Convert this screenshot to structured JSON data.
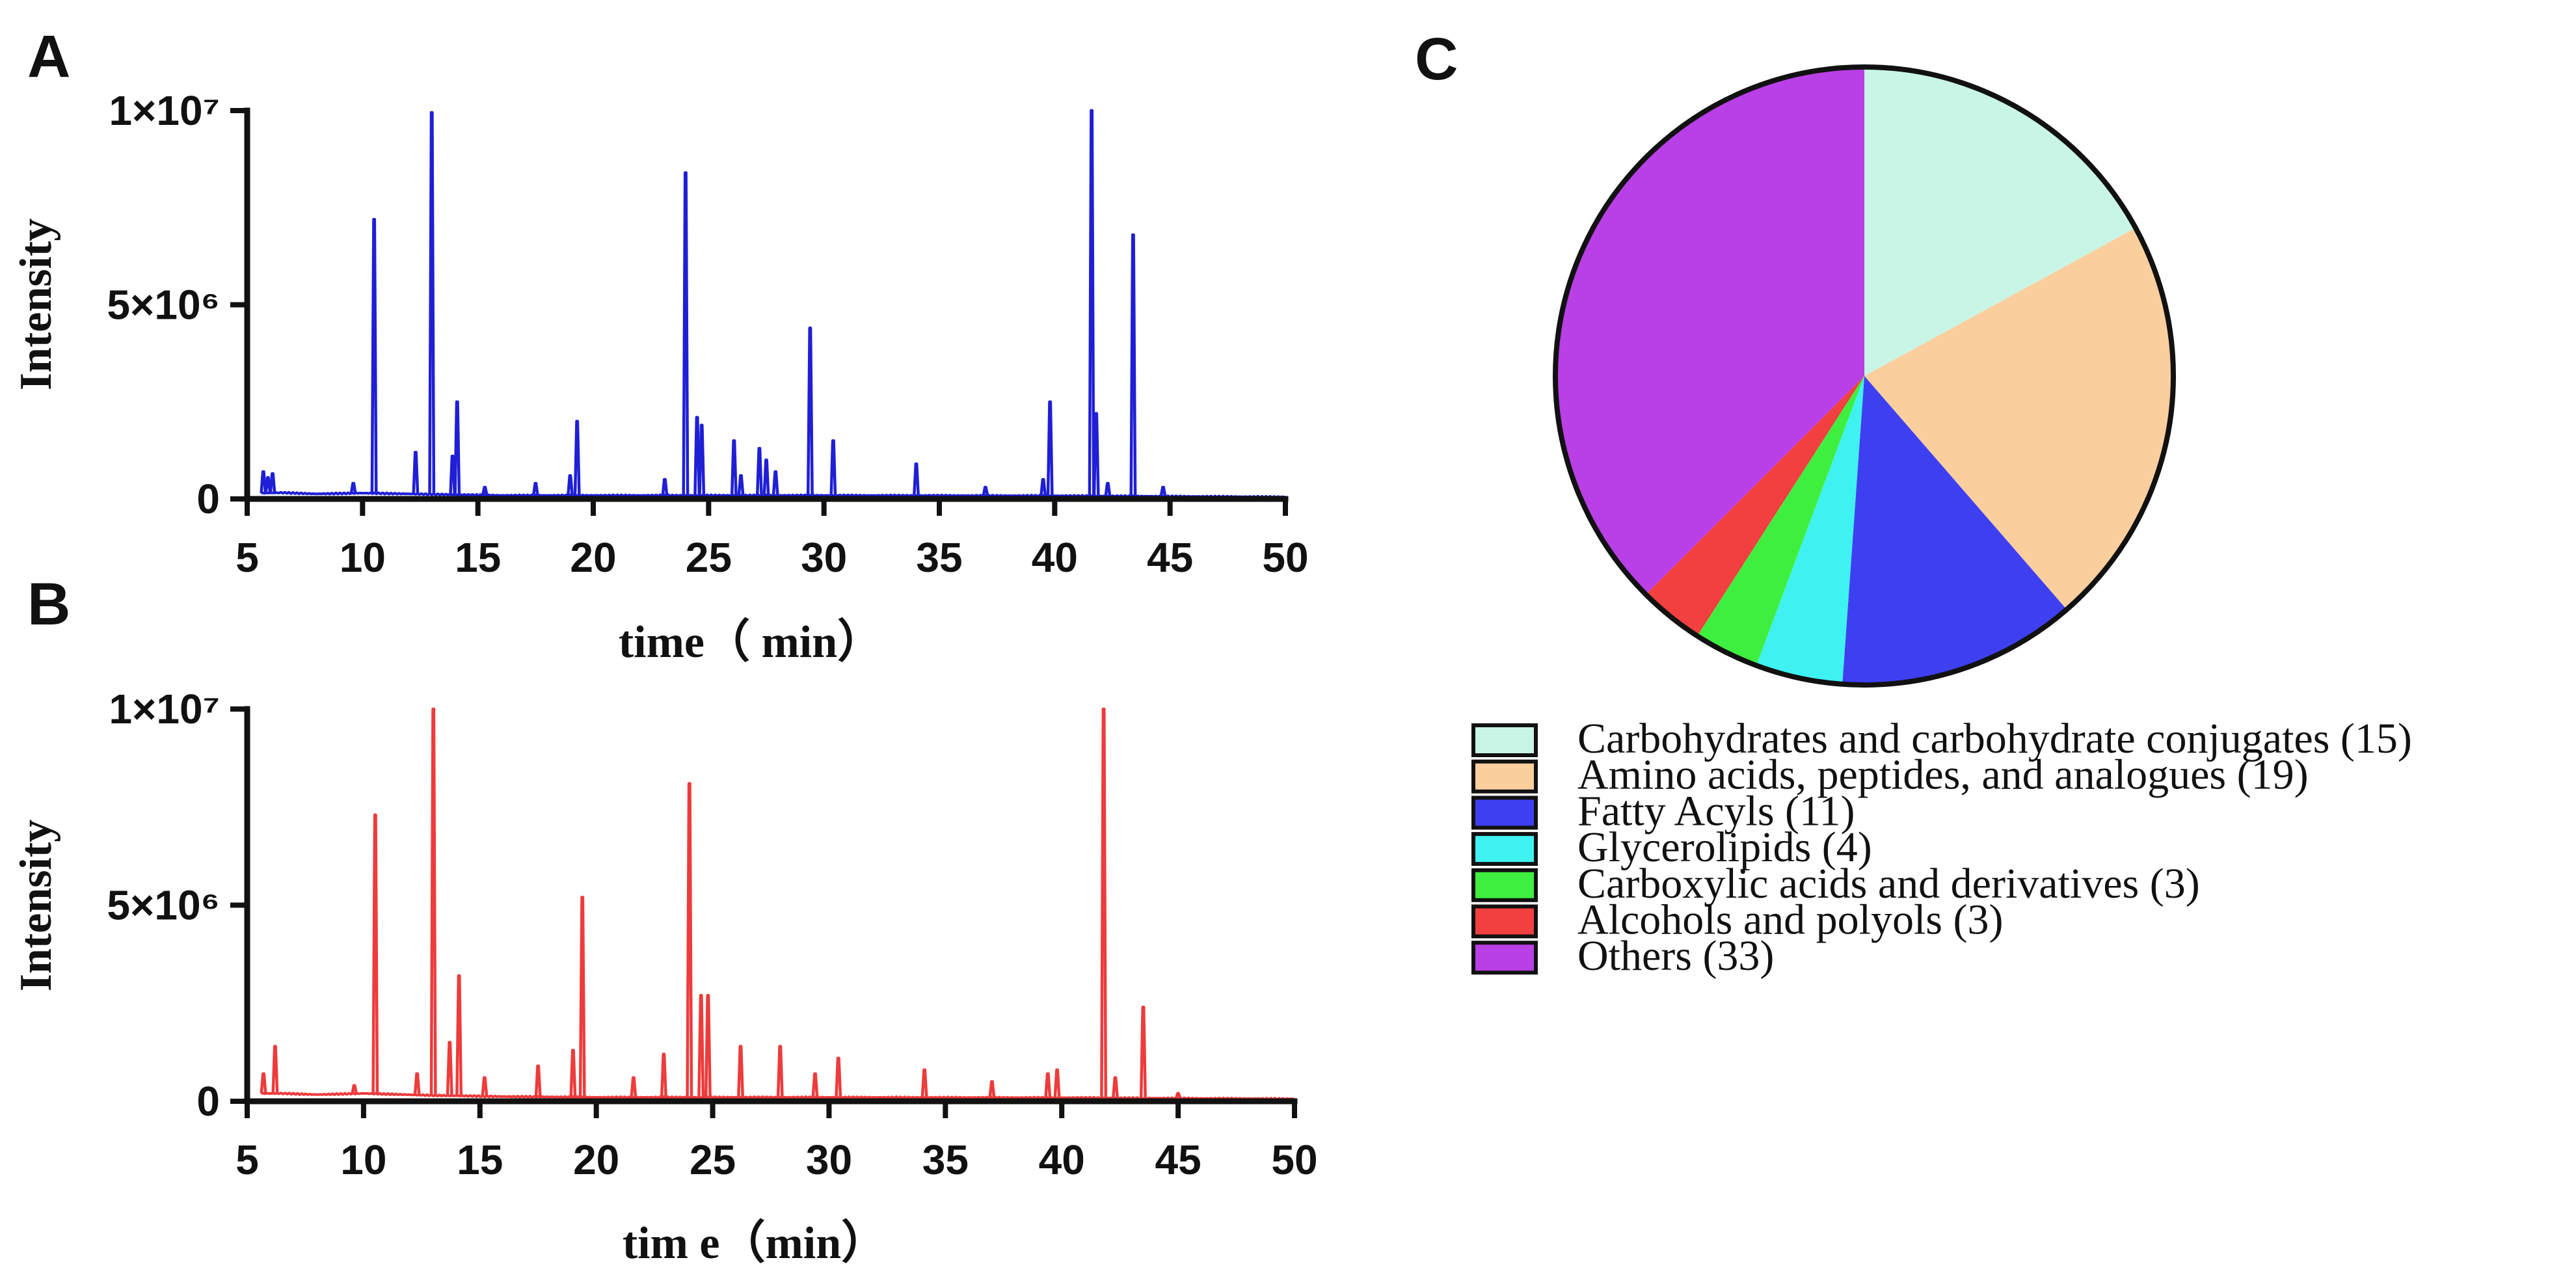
{
  "chart_data": [
    {
      "panel": "A",
      "type": "line",
      "title": "",
      "xlabel": "time（ min）",
      "ylabel": "Intensity",
      "xlim": [
        5,
        50
      ],
      "ylim": [
        0,
        10000000
      ],
      "xticks": [
        "5",
        "10",
        "15",
        "20",
        "25",
        "30",
        "35",
        "40",
        "45",
        "50"
      ],
      "xtick_values": [
        5,
        10,
        15,
        20,
        25,
        30,
        35,
        40,
        45,
        50
      ],
      "yticks": [
        "0",
        "5×10⁶",
        "1×10⁷"
      ],
      "ytick_values": [
        0,
        5000000,
        10000000
      ],
      "color": "#1f1fd6",
      "baseline": [
        [
          5.6,
          150000
        ],
        [
          6.5,
          160000
        ],
        [
          8.0,
          130000
        ],
        [
          10.0,
          150000
        ],
        [
          13.0,
          120000
        ],
        [
          16.0,
          90000
        ],
        [
          20.0,
          90000
        ],
        [
          30.0,
          90000
        ],
        [
          40.0,
          80000
        ],
        [
          50.0,
          50000
        ]
      ],
      "peaks": [
        [
          5.7,
          700000
        ],
        [
          5.9,
          550000
        ],
        [
          6.1,
          650000
        ],
        [
          9.6,
          400000
        ],
        [
          10.5,
          7200000
        ],
        [
          12.3,
          1200000
        ],
        [
          13.0,
          9950000
        ],
        [
          13.9,
          1100000
        ],
        [
          14.1,
          2500000
        ],
        [
          15.3,
          300000
        ],
        [
          17.5,
          400000
        ],
        [
          19.0,
          600000
        ],
        [
          19.3,
          2000000
        ],
        [
          23.1,
          500000
        ],
        [
          24.0,
          8400000
        ],
        [
          24.5,
          2100000
        ],
        [
          24.7,
          1900000
        ],
        [
          26.1,
          1500000
        ],
        [
          26.4,
          600000
        ],
        [
          27.2,
          1300000
        ],
        [
          27.5,
          1000000
        ],
        [
          27.9,
          700000
        ],
        [
          29.4,
          4400000
        ],
        [
          30.4,
          1500000
        ],
        [
          34.0,
          900000
        ],
        [
          37.0,
          300000
        ],
        [
          39.5,
          500000
        ],
        [
          39.8,
          2500000
        ],
        [
          41.6,
          10000000
        ],
        [
          41.8,
          2200000
        ],
        [
          42.3,
          400000
        ],
        [
          43.4,
          6800000
        ],
        [
          44.7,
          300000
        ]
      ]
    },
    {
      "panel": "B",
      "type": "line",
      "title": "",
      "xlabel": "tim e（min）",
      "ylabel": "Intensity",
      "xlim": [
        5,
        50
      ],
      "ylim": [
        0,
        10000000
      ],
      "xticks": [
        "5",
        "10",
        "15",
        "20",
        "25",
        "30",
        "35",
        "40",
        "45",
        "50"
      ],
      "xtick_values": [
        5,
        10,
        15,
        20,
        25,
        30,
        35,
        40,
        45,
        50
      ],
      "yticks": [
        "0",
        "5×10⁶",
        "1×10⁷"
      ],
      "ytick_values": [
        0,
        5000000,
        10000000
      ],
      "color": "#ee3b3b",
      "baseline": [
        [
          5.6,
          200000
        ],
        [
          6.5,
          200000
        ],
        [
          8.0,
          170000
        ],
        [
          10.0,
          200000
        ],
        [
          13.0,
          150000
        ],
        [
          16.0,
          120000
        ],
        [
          20.0,
          100000
        ],
        [
          30.0,
          100000
        ],
        [
          40.0,
          90000
        ],
        [
          50.0,
          60000
        ]
      ],
      "peaks": [
        [
          5.7,
          700000
        ],
        [
          6.2,
          1400000
        ],
        [
          9.6,
          400000
        ],
        [
          10.5,
          7300000
        ],
        [
          12.3,
          700000
        ],
        [
          13.0,
          10000000
        ],
        [
          13.7,
          1500000
        ],
        [
          14.1,
          3200000
        ],
        [
          15.2,
          600000
        ],
        [
          17.5,
          900000
        ],
        [
          19.0,
          1300000
        ],
        [
          19.4,
          5200000
        ],
        [
          21.6,
          600000
        ],
        [
          22.9,
          1200000
        ],
        [
          24.0,
          8100000
        ],
        [
          24.5,
          2700000
        ],
        [
          24.8,
          2700000
        ],
        [
          26.2,
          1400000
        ],
        [
          27.9,
          1400000
        ],
        [
          29.4,
          700000
        ],
        [
          30.4,
          1100000
        ],
        [
          34.1,
          800000
        ],
        [
          37.0,
          500000
        ],
        [
          39.4,
          700000
        ],
        [
          39.8,
          800000
        ],
        [
          41.8,
          10000000
        ],
        [
          42.3,
          600000
        ],
        [
          43.5,
          2400000
        ],
        [
          45.0,
          200000
        ]
      ]
    },
    {
      "panel": "C",
      "type": "pie",
      "title": "",
      "labels": [
        "Carbohydrates and carbohydrate conjugates (15)",
        "Amino acids, peptides, and analogues (19)",
        "Fatty Acyls (11)",
        "Glycerolipids (4)",
        "Carboxylic acids and derivatives (3)",
        "Alcohols and polyols (3)",
        "Others (33)"
      ],
      "values": [
        15,
        19,
        11,
        4,
        3,
        3,
        33
      ],
      "colors": [
        "#c9f5e6",
        "#fbcf9d",
        "#3f3ff2",
        "#3ff2f2",
        "#3fef3f",
        "#f23f3f",
        "#b93fe6"
      ],
      "start": "top, clockwise",
      "legend": "bottom"
    }
  ]
}
